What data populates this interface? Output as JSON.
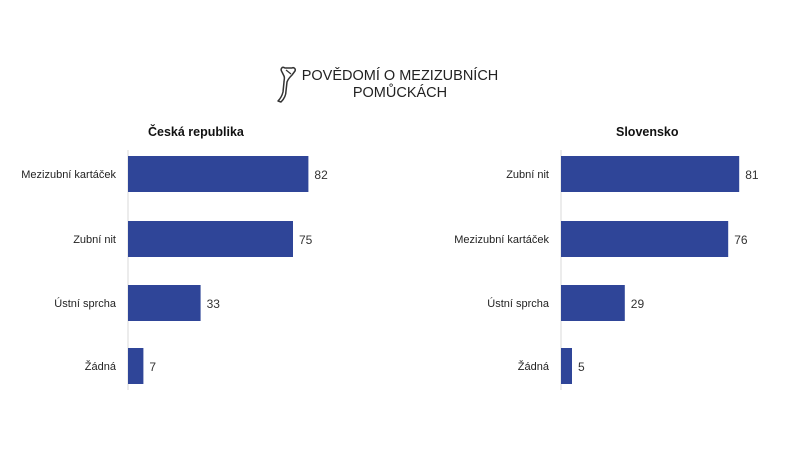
{
  "title_line1": "POVĚDOMÍ O MEZIZUBNÍCH",
  "title_line2": "POMŮCKÁCH",
  "colors": {
    "bar": "#2f4598"
  },
  "icon": "dental-floss-pick-icon",
  "chart_data": [
    {
      "type": "bar",
      "orientation": "horizontal",
      "title": "Česká republika",
      "categories": [
        "Mezizubní kartáček",
        "Zubní nit",
        "Ústní sprcha",
        "Žádná"
      ],
      "values": [
        82,
        75,
        33,
        7
      ],
      "xlim": [
        0,
        100
      ]
    },
    {
      "type": "bar",
      "orientation": "horizontal",
      "title": "Slovensko",
      "categories": [
        "Zubní nit",
        "Mezizubní kartáček",
        "Ústní sprcha",
        "Žádná"
      ],
      "values": [
        81,
        76,
        29,
        5
      ],
      "xlim": [
        0,
        100
      ]
    }
  ]
}
